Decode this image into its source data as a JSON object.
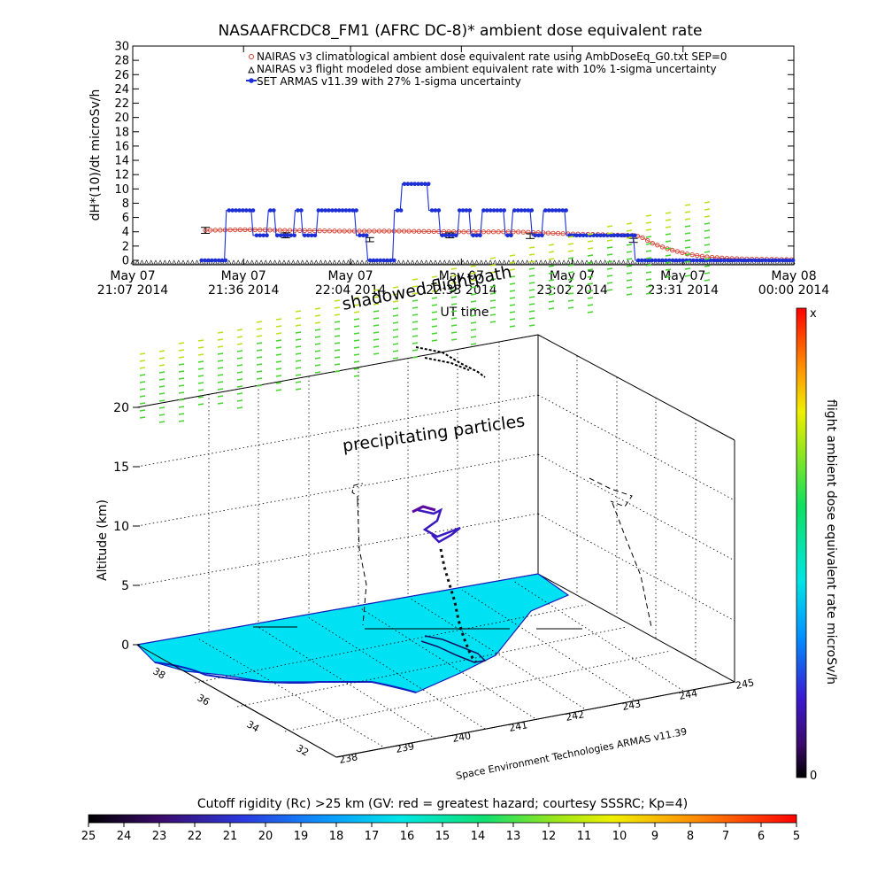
{
  "colors": {
    "nairas_clim": "#d43a2a",
    "nairas_flight": "#000000",
    "armas": "#1c2fd6",
    "terrain": "#00e1f4",
    "coast": "#1020c0",
    "dose_green": "#44d62c",
    "dose_yellow": "#b9e41c"
  },
  "chart_data": [
    {
      "type": "line",
      "title": "NASAAFRCDC8_FM1 (AFRC DC-8)* ambient dose equivalent rate",
      "xlabel": "UT time",
      "ylabel": "dH*(10)/dt microSv/h",
      "ylim": [
        0,
        30
      ],
      "yticks": [
        "0",
        "2",
        "4",
        "6",
        "8",
        "10",
        "12",
        "14",
        "16",
        "18",
        "20",
        "22",
        "24",
        "26",
        "28",
        "30"
      ],
      "xlim_minutes": [
        0,
        173
      ],
      "xticks": [
        {
          "line1": "May 07",
          "line2": "21:07 2014",
          "t": 0
        },
        {
          "line1": "May 07",
          "line2": "21:36 2014",
          "t": 29
        },
        {
          "line1": "May 07",
          "line2": "22:04 2014",
          "t": 57
        },
        {
          "line1": "May 07",
          "line2": "22:33 2014",
          "t": 86
        },
        {
          "line1": "May 07",
          "line2": "23:02 2014",
          "t": 115
        },
        {
          "line1": "May 07",
          "line2": "23:31 2014",
          "t": 144
        },
        {
          "line1": "May 08",
          "line2": "00:00 2014",
          "t": 173
        }
      ],
      "legend": [
        "NAIRAS v3 climatological ambient dose equivalent rate using AmbDoseEq_G0.txt SEP=0",
        "NAIRAS v3 flight modeled dose ambient equivalent rate with 10% 1-sigma uncertainty",
        "SET ARMAS v11.39 with 27% 1-sigma uncertainty"
      ],
      "legend_position": "top-right",
      "series": [
        {
          "name": "NAIRAS v3 climatological ambient dose equivalent rate using AmbDoseEq_G0.txt SEP=0",
          "x": [
            19,
            30,
            40,
            55,
            70,
            85,
            100,
            115,
            131,
            133,
            136,
            140,
            145,
            150,
            155,
            160,
            173
          ],
          "values": [
            4.2,
            4.3,
            4.2,
            4.1,
            4.1,
            4.0,
            4.0,
            3.7,
            3.5,
            3.3,
            2.4,
            1.6,
            0.9,
            0.5,
            0.3,
            0.2,
            0.1
          ]
        },
        {
          "name": "NAIRAS v3 flight modeled dose ambient equivalent rate with 10% 1-sigma uncertainty",
          "x": [
            19,
            40,
            62,
            83,
            104,
            131
          ],
          "values": [
            4.2,
            3.5,
            2.9,
            3.5,
            3.4,
            2.8
          ]
        },
        {
          "name": "SET ARMAS v11.39 with 27% 1-sigma uncertainty",
          "x": [
            18,
            24,
            24.5,
            31,
            31.5,
            35,
            35.5,
            37,
            37.5,
            42,
            42.5,
            44,
            44.5,
            48,
            48.5,
            58,
            58.5,
            61,
            61.5,
            68,
            68.5,
            70,
            70.5,
            77,
            77.5,
            80,
            80.5,
            85,
            85.5,
            88,
            88.5,
            91,
            91.5,
            97,
            97.5,
            99,
            99.5,
            104,
            104.5,
            107,
            107.5,
            113,
            113.5,
            131,
            131.5,
            173
          ],
          "values": [
            0,
            0,
            7,
            7,
            3.5,
            3.5,
            7,
            7,
            3.5,
            3.5,
            7,
            7,
            3.5,
            3.5,
            7,
            7,
            3.5,
            3.5,
            0,
            0,
            7,
            7,
            10.7,
            10.7,
            7,
            7,
            3.5,
            3.5,
            7,
            7,
            3.5,
            3.5,
            7,
            7,
            3.5,
            3.5,
            7,
            7,
            3.5,
            3.5,
            7,
            7,
            3.5,
            3.5,
            0,
            0
          ]
        }
      ]
    },
    {
      "type": "scatter",
      "ylabel": "Altitude (km)",
      "yticks": [
        "0",
        "5",
        "10",
        "15",
        "20"
      ],
      "lat_ticks": [
        "38",
        "36",
        "34",
        "32"
      ],
      "lon_ticks": [
        "238",
        "239",
        "240",
        "241",
        "242",
        "243",
        "244",
        "245"
      ],
      "labels": {
        "shadow": "shadowed flightpath",
        "precip": "precipitating particles",
        "credit": "Space Environment Technologies ARMAS v11.39"
      }
    }
  ],
  "colorbar_right": {
    "title": "flight ambient dose equivalent rate microSv/h",
    "top_label": "x",
    "bottom_label": "0"
  },
  "colorbar_bottom": {
    "title": "Cutoff rigidity (Rc) >25 km (GV: red = greatest hazard; courtesy SSSRC; Kp=4)",
    "tick_labels": [
      "25",
      "24",
      "23",
      "22",
      "21",
      "20",
      "19",
      "18",
      "17",
      "16",
      "15",
      "14",
      "13",
      "12",
      "11",
      "10",
      "9",
      "8",
      "7",
      "6",
      "5"
    ]
  }
}
